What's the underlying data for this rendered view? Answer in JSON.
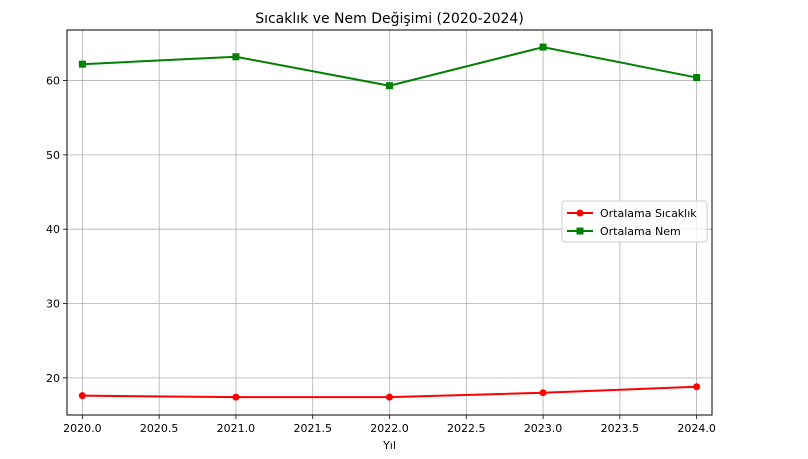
{
  "chart_data": {
    "type": "line",
    "title": "Sıcaklık ve Nem Değişimi (2020-2024)",
    "xlabel": "Yıl",
    "ylabel": "",
    "x": [
      2020,
      2021,
      2022,
      2023,
      2024
    ],
    "xlim": [
      2019.9,
      2024.1
    ],
    "ylim": [
      15.0,
      66.8
    ],
    "xticks": [
      "2020.0",
      "2020.5",
      "2021.0",
      "2021.5",
      "2022.0",
      "2022.5",
      "2023.0",
      "2023.5",
      "2024.0"
    ],
    "yticks": [
      "20",
      "30",
      "40",
      "50",
      "60"
    ],
    "grid": true,
    "legend_position": "center-right",
    "series": [
      {
        "name": "Ortalama Sıcaklık",
        "color": "#ff0000",
        "marker": "circle",
        "values": [
          17.6,
          17.4,
          17.4,
          18.0,
          18.8
        ]
      },
      {
        "name": "Ortalama Nem",
        "color": "#008000",
        "marker": "square",
        "values": [
          62.2,
          63.2,
          59.3,
          64.5,
          60.4
        ]
      }
    ]
  }
}
